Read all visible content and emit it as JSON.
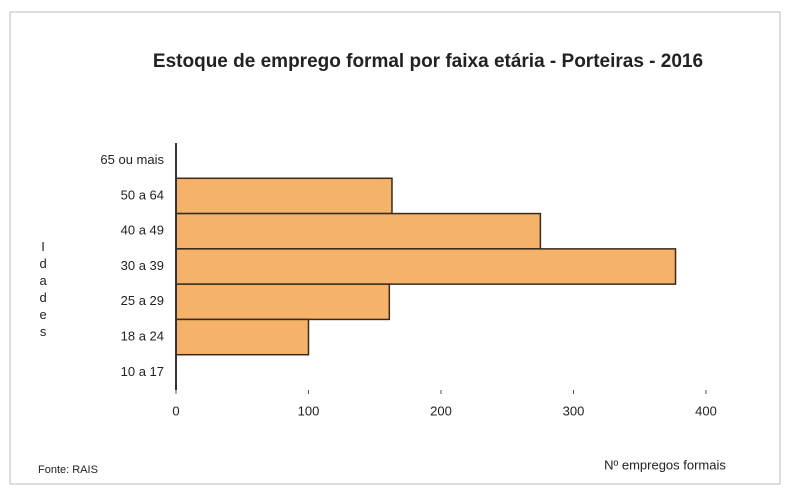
{
  "chart_data": {
    "type": "barh",
    "title": "Estoque  de emprego formal por faixa etária - Porteiras - 2016",
    "y_label": "Idades",
    "x_label": "Nº empregos formais",
    "source": "Fonte: RAIS",
    "categories": [
      "65 ou mais",
      "50 a 64",
      "40 a 49",
      "30 a 39",
      "25 a 29",
      "18 a 24",
      "10 a 17"
    ],
    "values": [
      0,
      163,
      275,
      377,
      161,
      100,
      0
    ],
    "color": "#f5b26b",
    "xlim": [
      0,
      400
    ],
    "xticks": [
      0,
      100,
      200,
      300,
      400
    ],
    "grid": false
  }
}
